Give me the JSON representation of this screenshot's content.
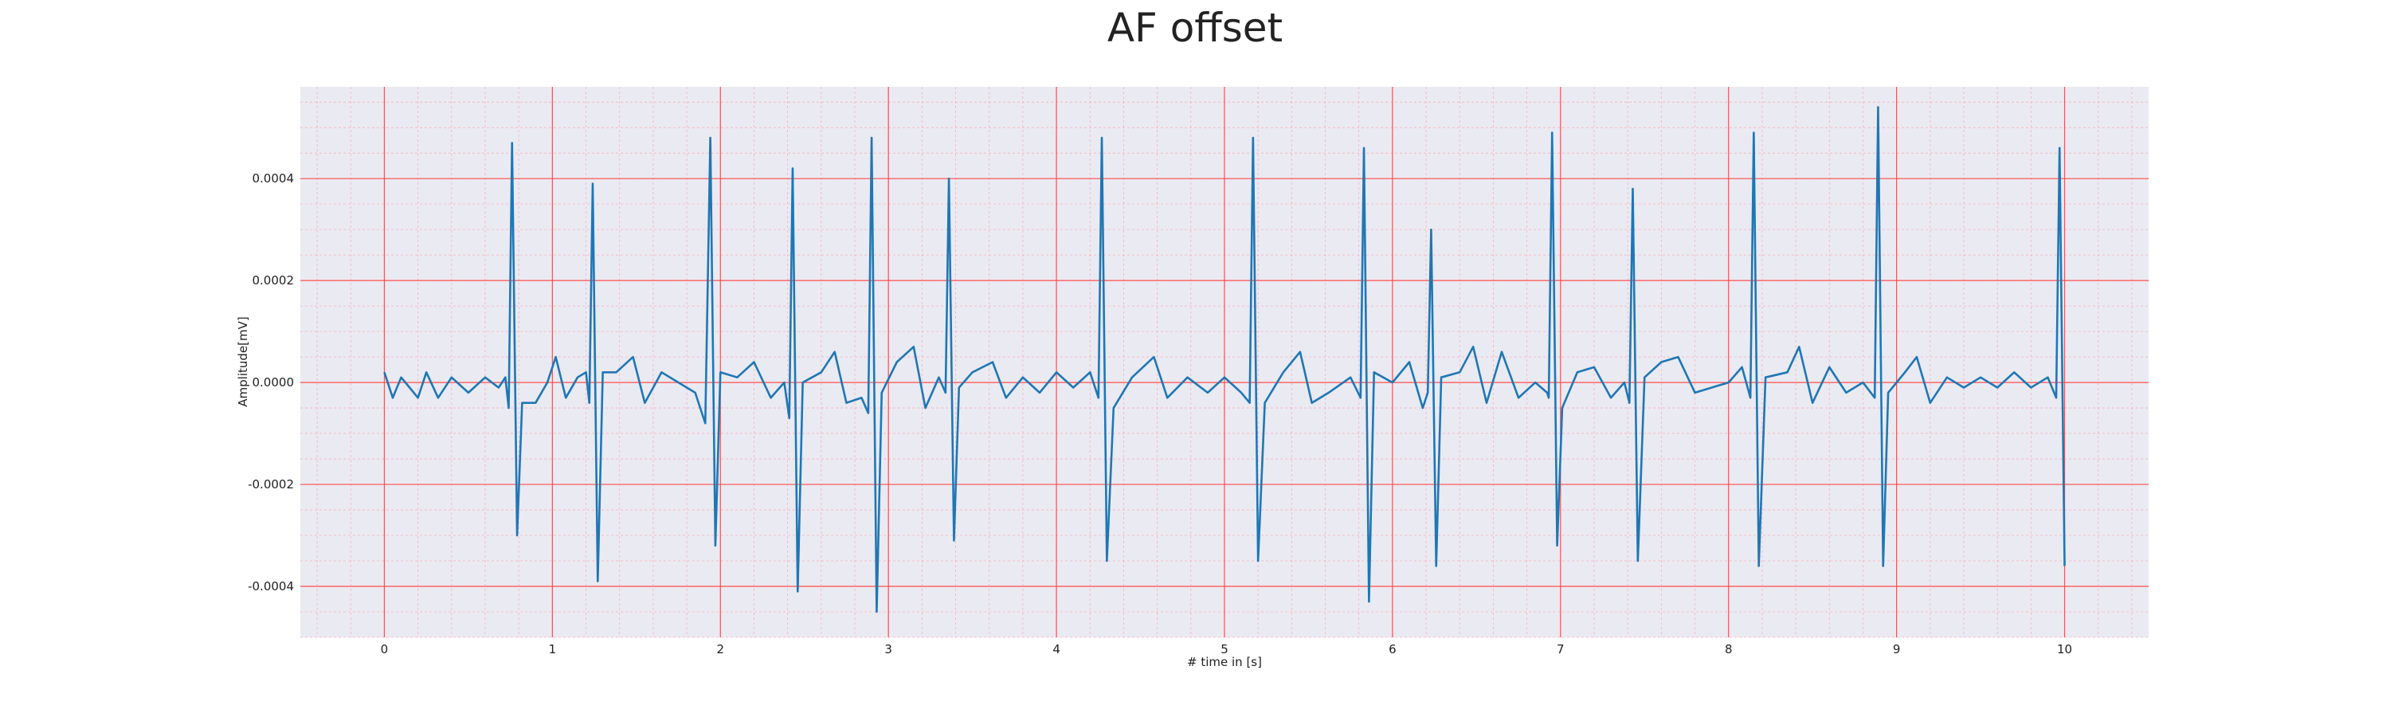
{
  "chart_data": {
    "type": "line",
    "title": "AF offset",
    "xlabel": "# time in [s]",
    "ylabel": "Amplitude[mV]",
    "color": "#1f77b4",
    "grid": true,
    "minor_grid": true,
    "xlim": [
      -0.5,
      10.5
    ],
    "ylim": [
      -0.0005,
      0.00058
    ],
    "xticks": [
      0,
      1,
      2,
      3,
      4,
      5,
      6,
      7,
      8,
      9,
      10
    ],
    "yticks": [
      {
        "value": -0.0004,
        "label": "-0.0004"
      },
      {
        "value": -0.0002,
        "label": "-0.0002"
      },
      {
        "value": 0,
        "label": "0.0000"
      },
      {
        "value": 0.0002,
        "label": "0.0002"
      },
      {
        "value": 0.0004,
        "label": "0.0004"
      }
    ],
    "x": [
      0,
      0.05,
      0.1,
      0.2,
      0.25,
      0.32,
      0.4,
      0.5,
      0.6,
      0.68,
      0.72,
      0.74,
      0.76,
      0.79,
      0.82,
      0.9,
      0.97,
      1.02,
      1.08,
      1.15,
      1.2,
      1.22,
      1.24,
      1.27,
      1.3,
      1.38,
      1.48,
      1.55,
      1.65,
      1.75,
      1.85,
      1.91,
      1.94,
      1.97,
      2.0,
      2.1,
      2.2,
      2.3,
      2.38,
      2.41,
      2.43,
      2.46,
      2.49,
      2.6,
      2.68,
      2.75,
      2.84,
      2.88,
      2.9,
      2.93,
      2.96,
      3.05,
      3.15,
      3.22,
      3.3,
      3.34,
      3.36,
      3.39,
      3.42,
      3.5,
      3.62,
      3.7,
      3.8,
      3.9,
      4.0,
      4.1,
      4.2,
      4.25,
      4.27,
      4.3,
      4.34,
      4.45,
      4.58,
      4.66,
      4.78,
      4.9,
      5.0,
      5.1,
      5.15,
      5.17,
      5.2,
      5.24,
      5.35,
      5.45,
      5.52,
      5.62,
      5.75,
      5.81,
      5.83,
      5.86,
      5.89,
      6.0,
      6.1,
      6.18,
      6.21,
      6.23,
      6.26,
      6.29,
      6.4,
      6.48,
      6.56,
      6.65,
      6.75,
      6.85,
      6.92,
      6.93,
      6.95,
      6.98,
      7.01,
      7.1,
      7.2,
      7.3,
      7.38,
      7.41,
      7.43,
      7.46,
      7.5,
      7.6,
      7.7,
      7.8,
      7.9,
      8.0,
      8.08,
      8.13,
      8.15,
      8.18,
      8.22,
      8.35,
      8.42,
      8.5,
      8.6,
      8.7,
      8.8,
      8.87,
      8.89,
      8.92,
      8.95,
      9.05,
      9.12,
      9.2,
      9.3,
      9.4,
      9.5,
      9.6,
      9.7,
      9.8,
      9.9,
      9.95,
      9.97,
      10.0
    ],
    "values": [
      2e-05,
      -3e-05,
      1e-05,
      -3e-05,
      2e-05,
      -3e-05,
      1e-05,
      -2e-05,
      1e-05,
      -1e-05,
      1e-05,
      -5e-05,
      0.00047,
      -0.0003,
      -4e-05,
      -4e-05,
      0,
      5e-05,
      -3e-05,
      1e-05,
      2e-05,
      -4e-05,
      0.00039,
      -0.00039,
      2e-05,
      2e-05,
      5e-05,
      -4e-05,
      2e-05,
      0,
      -2e-05,
      -8e-05,
      0.00048,
      -0.00032,
      2e-05,
      1e-05,
      4e-05,
      -3e-05,
      0,
      -7e-05,
      0.00042,
      -0.00041,
      0,
      2e-05,
      6e-05,
      -4e-05,
      -3e-05,
      -6e-05,
      0.00048,
      -0.00045,
      -2e-05,
      4e-05,
      7e-05,
      -5e-05,
      1e-05,
      -2e-05,
      0.0004,
      -0.00031,
      -1e-05,
      2e-05,
      4e-05,
      -3e-05,
      1e-05,
      -2e-05,
      2e-05,
      -1e-05,
      2e-05,
      -3e-05,
      0.00048,
      -0.00035,
      -5e-05,
      1e-05,
      5e-05,
      -3e-05,
      1e-05,
      -2e-05,
      1e-05,
      -2e-05,
      -4e-05,
      0.00048,
      -0.00035,
      -4e-05,
      2e-05,
      6e-05,
      -4e-05,
      -2e-05,
      1e-05,
      -3e-05,
      0.00046,
      -0.00043,
      2e-05,
      0,
      4e-05,
      -5e-05,
      -2e-05,
      0.0003,
      -0.00036,
      1e-05,
      2e-05,
      7e-05,
      -4e-05,
      6e-05,
      -3e-05,
      0,
      -2e-05,
      -3e-05,
      0.00049,
      -0.00032,
      -5e-05,
      2e-05,
      3e-05,
      -3e-05,
      0,
      -4e-05,
      0.00038,
      -0.00035,
      1e-05,
      4e-05,
      5e-05,
      -2e-05,
      -1e-05,
      0,
      3e-05,
      -3e-05,
      0.00049,
      -0.00036,
      1e-05,
      2e-05,
      7e-05,
      -4e-05,
      3e-05,
      -2e-05,
      0,
      -3e-05,
      0.00054,
      -0.00036,
      -2e-05,
      2e-05,
      5e-05,
      -4e-05,
      1e-05,
      -1e-05,
      1e-05,
      -1e-05,
      2e-05,
      -1e-05,
      1e-05,
      -3e-05,
      0.00046,
      -0.00036
    ]
  }
}
